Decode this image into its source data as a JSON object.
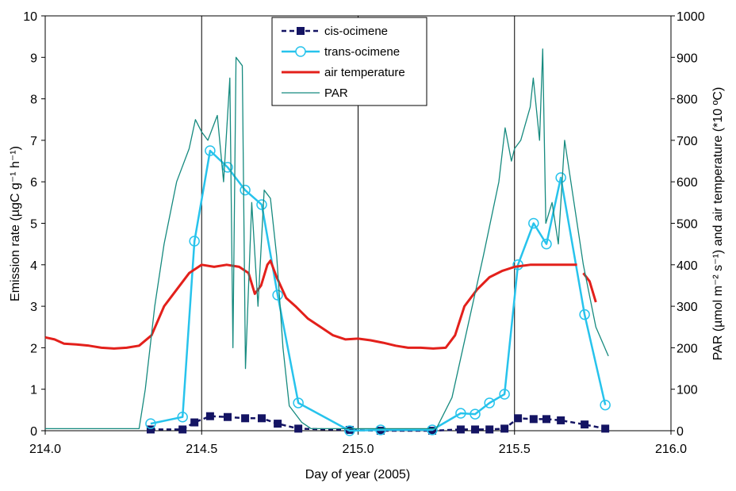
{
  "chart_data": {
    "type": "line",
    "xlabel": "Day of year (2005)",
    "ylabel": "Emission rate (µgC g⁻¹ h⁻¹)",
    "y2label": "PAR (µmol m⁻² s⁻¹) and air temperature (*10 ºC)",
    "xlim": [
      214,
      216
    ],
    "xticks": [
      {
        "value": 214,
        "label": "214.0"
      },
      214.5,
      {
        "value": 215,
        "label": "215.0"
      },
      215.5,
      {
        "value": 216,
        "label": "216.0"
      }
    ],
    "ylim": [
      0,
      10
    ],
    "yticks": [
      0,
      1,
      2,
      3,
      4,
      5,
      6,
      7,
      8,
      9,
      10
    ],
    "y2lim": [
      0,
      1000
    ],
    "y2ticks": [
      0,
      100,
      200,
      300,
      400,
      500,
      600,
      700,
      800,
      900,
      1000
    ],
    "xgrid": true,
    "legend": "upper center",
    "series": [
      {
        "name": "cis-ocimene",
        "color": "#141463",
        "marker": "square",
        "dashed": true,
        "x": [
          214.337,
          214.439,
          214.477,
          214.527,
          214.583,
          214.639,
          214.692,
          214.743,
          214.809,
          214.973,
          215.072,
          215.237,
          215.328,
          215.374,
          215.42,
          215.468,
          215.511,
          215.561,
          215.602,
          215.648,
          215.724,
          215.79
        ],
        "values": [
          0.03,
          0.03,
          0.2,
          0.35,
          0.33,
          0.3,
          0.3,
          0.17,
          0.05,
          0.02,
          0.0,
          0.0,
          0.03,
          0.03,
          0.03,
          0.05,
          0.3,
          0.28,
          0.28,
          0.25,
          0.15,
          0.05
        ]
      },
      {
        "name": "trans-ocimene",
        "color": "#27c3ec",
        "marker": "circle",
        "dashed": false,
        "x": [
          214.337,
          214.439,
          214.477,
          214.527,
          214.583,
          214.639,
          214.692,
          214.743,
          214.809,
          214.973,
          215.072,
          215.237,
          215.328,
          215.374,
          215.42,
          215.468,
          215.511,
          215.561,
          215.602,
          215.648,
          215.724,
          215.79
        ],
        "values": [
          0.17,
          0.33,
          4.57,
          6.75,
          6.35,
          5.8,
          5.45,
          3.27,
          0.67,
          0.0,
          0.02,
          0.02,
          0.42,
          0.4,
          0.67,
          0.88,
          4.0,
          5.0,
          4.5,
          6.1,
          2.8,
          0.62
        ]
      },
      {
        "name": "air temperature",
        "color": "#e3201b",
        "axis": "y2",
        "dashed": false,
        "x": [
          214.0,
          214.03,
          214.06,
          214.1,
          214.14,
          214.18,
          214.22,
          214.26,
          214.3,
          214.34,
          214.38,
          214.42,
          214.46,
          214.5,
          214.54,
          214.58,
          214.62,
          214.65,
          214.67,
          214.69,
          214.71,
          214.72,
          214.74,
          214.77,
          214.8,
          214.84,
          214.88,
          214.92,
          214.96,
          215.0,
          215.04,
          215.08,
          215.12,
          215.16,
          215.2,
          215.24,
          215.28,
          215.31,
          215.34,
          215.38,
          215.42,
          215.46,
          215.5,
          215.55,
          215.6,
          215.65,
          215.7,
          215.71,
          215.72,
          215.74,
          215.76
        ],
        "values": [
          225,
          220,
          210,
          208,
          205,
          200,
          198,
          200,
          205,
          230,
          300,
          340,
          380,
          400,
          395,
          400,
          395,
          380,
          330,
          350,
          400,
          410,
          370,
          320,
          300,
          270,
          250,
          230,
          220,
          222,
          218,
          212,
          205,
          200,
          200,
          198,
          200,
          230,
          300,
          340,
          370,
          385,
          395,
          400,
          400,
          400,
          400,
          null,
          380,
          360,
          310
        ]
      },
      {
        "name": "PAR",
        "color": "#168a7f",
        "axis": "y2",
        "dashed": false,
        "x": [
          214.0,
          214.1,
          214.2,
          214.3,
          214.32,
          214.35,
          214.38,
          214.42,
          214.46,
          214.48,
          214.5,
          214.52,
          214.55,
          214.57,
          214.59,
          214.6,
          214.61,
          214.63,
          214.64,
          214.66,
          214.68,
          214.7,
          214.72,
          214.74,
          214.76,
          214.78,
          214.82,
          214.85,
          214.95,
          215.05,
          215.15,
          215.25,
          215.3,
          215.35,
          215.4,
          215.45,
          215.47,
          215.49,
          215.5,
          215.52,
          215.55,
          215.56,
          215.58,
          215.59,
          215.6,
          215.62,
          215.64,
          215.66,
          215.68,
          215.72,
          215.76,
          215.8
        ],
        "values": [
          5,
          5,
          5,
          5,
          100,
          300,
          450,
          600,
          680,
          750,
          720,
          700,
          760,
          600,
          850,
          200,
          900,
          880,
          150,
          550,
          300,
          580,
          560,
          420,
          200,
          60,
          20,
          5,
          5,
          5,
          5,
          5,
          80,
          250,
          420,
          600,
          730,
          650,
          680,
          700,
          780,
          850,
          700,
          920,
          500,
          550,
          450,
          700,
          600,
          400,
          250,
          180
        ]
      }
    ]
  }
}
